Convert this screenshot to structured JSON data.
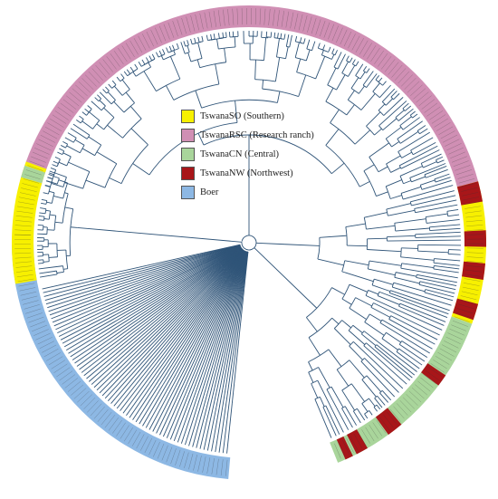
{
  "legend": {
    "items": [
      {
        "label": "TswanaSO (Southern)",
        "color": "#f7f000"
      },
      {
        "label": "TswanaRSC (Research ranch)",
        "color": "#d08fb4"
      },
      {
        "label": "TswanaCN (Central)",
        "color": "#a9d59b"
      },
      {
        "label": "TswanaNW (Northwest)",
        "color": "#a81619"
      },
      {
        "label": "Boer",
        "color": "#8db8e4"
      }
    ]
  },
  "ring": {
    "segments": [
      {
        "group": "TswanaRSC (Research ranch)",
        "start": -165,
        "end": -15
      },
      {
        "group": "TswanaSO (Southern)",
        "start": -15,
        "end": 20
      },
      {
        "group": "TswanaCN (Central)",
        "start": 20,
        "end": 68
      },
      {
        "group": "Boer",
        "start": 95,
        "end": 180
      }
    ],
    "accents": [
      {
        "group": "TswanaNW (Northwest)",
        "start": -15,
        "end": -10
      },
      {
        "group": "TswanaNW (Northwest)",
        "start": -3,
        "end": 1
      },
      {
        "group": "TswanaNW (Northwest)",
        "start": 5,
        "end": 9
      },
      {
        "group": "TswanaNW (Northwest)",
        "start": 15,
        "end": 19
      },
      {
        "group": "TswanaNW (Northwest)",
        "start": 34,
        "end": 37
      },
      {
        "group": "TswanaNW (Northwest)",
        "start": 50,
        "end": 54
      },
      {
        "group": "TswanaNW (Northwest)",
        "start": 60,
        "end": 63
      },
      {
        "group": "TswanaNW (Northwest)",
        "start": 64,
        "end": 66
      },
      {
        "group": "TswanaSO (Southern)",
        "start": 170,
        "end": 200
      },
      {
        "group": "TswanaCN (Central)",
        "start": 196,
        "end": 199
      }
    ]
  },
  "colors": {
    "branch": "#2f5478",
    "label_text": "#333333"
  }
}
